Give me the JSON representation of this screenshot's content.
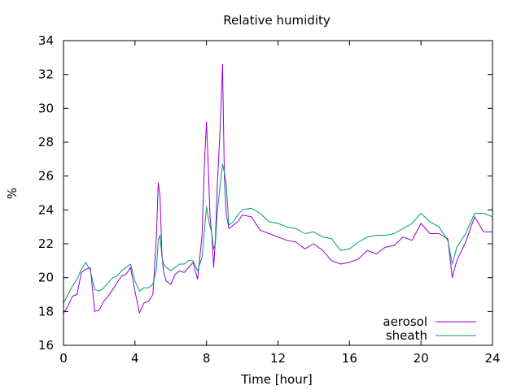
{
  "chart_data": {
    "type": "line",
    "title": "Relative humidity",
    "xlabel": "Time [hour]",
    "ylabel": "%",
    "xlim": [
      0,
      24
    ],
    "ylim": [
      16,
      34
    ],
    "xticks": [
      0,
      4,
      8,
      12,
      16,
      20,
      24
    ],
    "yticks": [
      16,
      18,
      20,
      22,
      24,
      26,
      28,
      30,
      32,
      34
    ],
    "grid": false,
    "legend_position": "bottom-right",
    "series": [
      {
        "name": "aerosol",
        "color": "#9400d3",
        "x": [
          0,
          0.25,
          0.5,
          0.75,
          1.0,
          1.25,
          1.5,
          1.75,
          2.0,
          2.25,
          2.5,
          2.75,
          3.0,
          3.25,
          3.5,
          3.75,
          4.0,
          4.25,
          4.5,
          4.75,
          5.0,
          5.2,
          5.3,
          5.4,
          5.5,
          5.6,
          5.75,
          6.0,
          6.25,
          6.5,
          6.75,
          7.0,
          7.25,
          7.5,
          7.75,
          7.9,
          8.0,
          8.1,
          8.2,
          8.3,
          8.4,
          8.5,
          8.6,
          8.75,
          8.9,
          9.0,
          9.1,
          9.25,
          9.5,
          9.75,
          10.0,
          10.5,
          11.0,
          11.5,
          12.0,
          12.5,
          13.0,
          13.5,
          14.0,
          14.5,
          15.0,
          15.5,
          16.0,
          16.5,
          17.0,
          17.5,
          18.0,
          18.5,
          19.0,
          19.5,
          20.0,
          20.5,
          21.0,
          21.5,
          21.75,
          22.0,
          22.5,
          23.0,
          23.5,
          24.0
        ],
        "y": [
          17.9,
          18.3,
          18.9,
          19.0,
          20.3,
          20.5,
          20.6,
          18.0,
          18.1,
          18.6,
          18.9,
          19.3,
          19.7,
          20.1,
          20.2,
          20.6,
          19.2,
          17.9,
          18.5,
          18.6,
          19.0,
          22.5,
          25.6,
          24.8,
          21.5,
          20.3,
          19.8,
          19.6,
          20.2,
          20.4,
          20.3,
          20.6,
          20.9,
          19.9,
          22.5,
          27.2,
          29.2,
          26.5,
          23.5,
          22.5,
          20.6,
          22.3,
          25.3,
          28.5,
          32.6,
          26.0,
          23.8,
          22.9,
          23.1,
          23.3,
          23.7,
          23.6,
          22.8,
          22.6,
          22.4,
          22.2,
          22.1,
          21.7,
          22.0,
          21.6,
          21.0,
          20.8,
          20.9,
          21.1,
          21.6,
          21.4,
          21.8,
          21.9,
          22.4,
          22.2,
          23.2,
          22.6,
          22.6,
          22.3,
          20.0,
          21.0,
          22.1,
          23.6,
          22.7,
          22.7
        ]
      },
      {
        "name": "sheath",
        "color": "#009e73",
        "x": [
          0,
          0.25,
          0.5,
          0.75,
          1.0,
          1.25,
          1.5,
          1.75,
          2.0,
          2.25,
          2.5,
          2.75,
          3.0,
          3.25,
          3.5,
          3.75,
          4.0,
          4.25,
          4.5,
          4.75,
          5.0,
          5.2,
          5.3,
          5.4,
          5.5,
          5.6,
          5.75,
          6.0,
          6.25,
          6.5,
          6.75,
          7.0,
          7.25,
          7.5,
          7.75,
          7.9,
          8.0,
          8.1,
          8.2,
          8.3,
          8.4,
          8.5,
          8.6,
          8.75,
          8.9,
          9.0,
          9.1,
          9.25,
          9.5,
          9.75,
          10.0,
          10.5,
          11.0,
          11.5,
          12.0,
          12.5,
          13.0,
          13.5,
          14.0,
          14.5,
          15.0,
          15.5,
          16.0,
          16.5,
          17.0,
          17.5,
          18.0,
          18.5,
          19.0,
          19.5,
          20.0,
          20.5,
          21.0,
          21.5,
          21.75,
          22.0,
          22.5,
          23.0,
          23.5,
          24.0
        ],
        "y": [
          18.5,
          19.0,
          19.5,
          19.9,
          20.5,
          20.9,
          20.4,
          19.3,
          19.2,
          19.4,
          19.7,
          20.0,
          20.1,
          20.4,
          20.6,
          20.8,
          19.8,
          19.2,
          19.4,
          19.4,
          19.6,
          20.5,
          22.2,
          22.5,
          21.3,
          20.8,
          20.6,
          20.4,
          20.6,
          20.8,
          20.8,
          21.0,
          21.0,
          20.4,
          21.2,
          23.0,
          24.2,
          23.5,
          23.0,
          22.6,
          21.7,
          22.0,
          23.8,
          25.3,
          26.7,
          26.2,
          25.6,
          23.1,
          23.3,
          23.7,
          24.0,
          24.1,
          23.8,
          23.3,
          23.2,
          23.0,
          22.9,
          22.6,
          22.7,
          22.4,
          22.3,
          21.6,
          21.7,
          22.1,
          22.4,
          22.5,
          22.5,
          22.6,
          22.9,
          23.2,
          23.8,
          23.3,
          23.0,
          22.2,
          20.8,
          21.8,
          22.6,
          23.8,
          23.8,
          23.6
        ]
      }
    ]
  }
}
